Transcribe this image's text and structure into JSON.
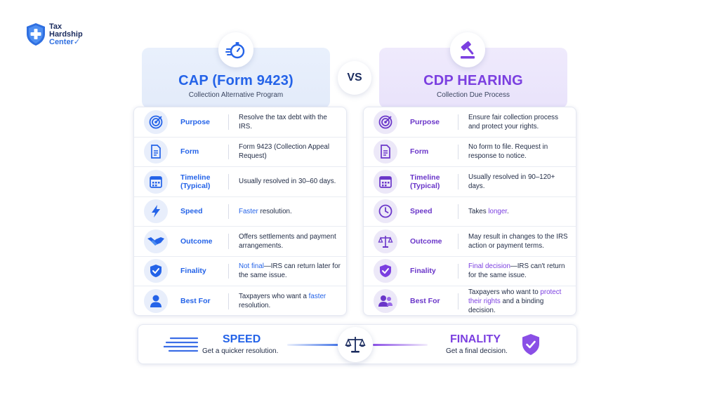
{
  "logo": {
    "line1": "Tax",
    "line2": "Hardship",
    "line3": "Center"
  },
  "vs": "VS",
  "cap": {
    "title": "CAP (Form 9423)",
    "subtitle": "Collection Alternative Program",
    "rows": [
      {
        "label": "Purpose",
        "icon": "target-icon",
        "desc_pre": "Resolve the tax debt with the IRS.",
        "desc_hl": "",
        "desc_post": ""
      },
      {
        "label": "Form",
        "icon": "document-icon",
        "desc_pre": "Form 9423 (Collection Appeal Request)",
        "desc_hl": "",
        "desc_post": ""
      },
      {
        "label": "Timeline (Typical)",
        "icon": "calendar-icon",
        "desc_pre": "Usually resolved in 30–60 days.",
        "desc_hl": "",
        "desc_post": ""
      },
      {
        "label": "Speed",
        "icon": "lightning-icon",
        "desc_pre": "",
        "desc_hl": "Faster",
        "desc_post": " resolution."
      },
      {
        "label": "Outcome",
        "icon": "handshake-icon",
        "desc_pre": "Offers settlements and payment arrangements.",
        "desc_hl": "",
        "desc_post": ""
      },
      {
        "label": "Finality",
        "icon": "shield-check-icon",
        "desc_pre": "",
        "desc_hl": "Not final",
        "desc_post": "—IRS can return later for the same issue."
      },
      {
        "label": "Best For",
        "icon": "user-icon",
        "desc_pre": "Taxpayers who want a ",
        "desc_hl": "faster",
        "desc_post": " resolution."
      }
    ]
  },
  "cdp": {
    "title": "CDP HEARING",
    "subtitle": "Collection Due Process",
    "rows": [
      {
        "label": "Purpose",
        "icon": "target-icon",
        "desc_pre": "Ensure fair collection process and protect your rights.",
        "desc_hl": "",
        "desc_post": ""
      },
      {
        "label": "Form",
        "icon": "document-icon",
        "desc_pre": "No form to file. Request in response to notice.",
        "desc_hl": "",
        "desc_post": ""
      },
      {
        "label": "Timeline (Typical)",
        "icon": "calendar-icon",
        "desc_pre": "Usually resolved in 90–120+ days.",
        "desc_hl": "",
        "desc_post": ""
      },
      {
        "label": "Speed",
        "icon": "clock-icon",
        "desc_pre": "Takes ",
        "desc_hl": "longer",
        "desc_post": "."
      },
      {
        "label": "Outcome",
        "icon": "scale-icon",
        "desc_pre": "May result in changes to the IRS action or payment terms.",
        "desc_hl": "",
        "desc_post": ""
      },
      {
        "label": "Finality",
        "icon": "shield-check-icon",
        "desc_pre": "",
        "desc_hl": "Final decision",
        "desc_post": "—IRS can't return for the same issue."
      },
      {
        "label": "Best For",
        "icon": "users-icon",
        "desc_pre": "Taxpayers who want to ",
        "desc_hl": "protect their rights",
        "desc_post": " and a binding decision."
      }
    ]
  },
  "banner": {
    "speed_title": "SPEED",
    "speed_sub": "Get a quicker resolution.",
    "finality_title": "FINALITY",
    "finality_sub": "Get a final decision."
  },
  "colors": {
    "blue": "#2463e8",
    "purple": "#7b3fe0",
    "navy": "#1a2b5e"
  }
}
